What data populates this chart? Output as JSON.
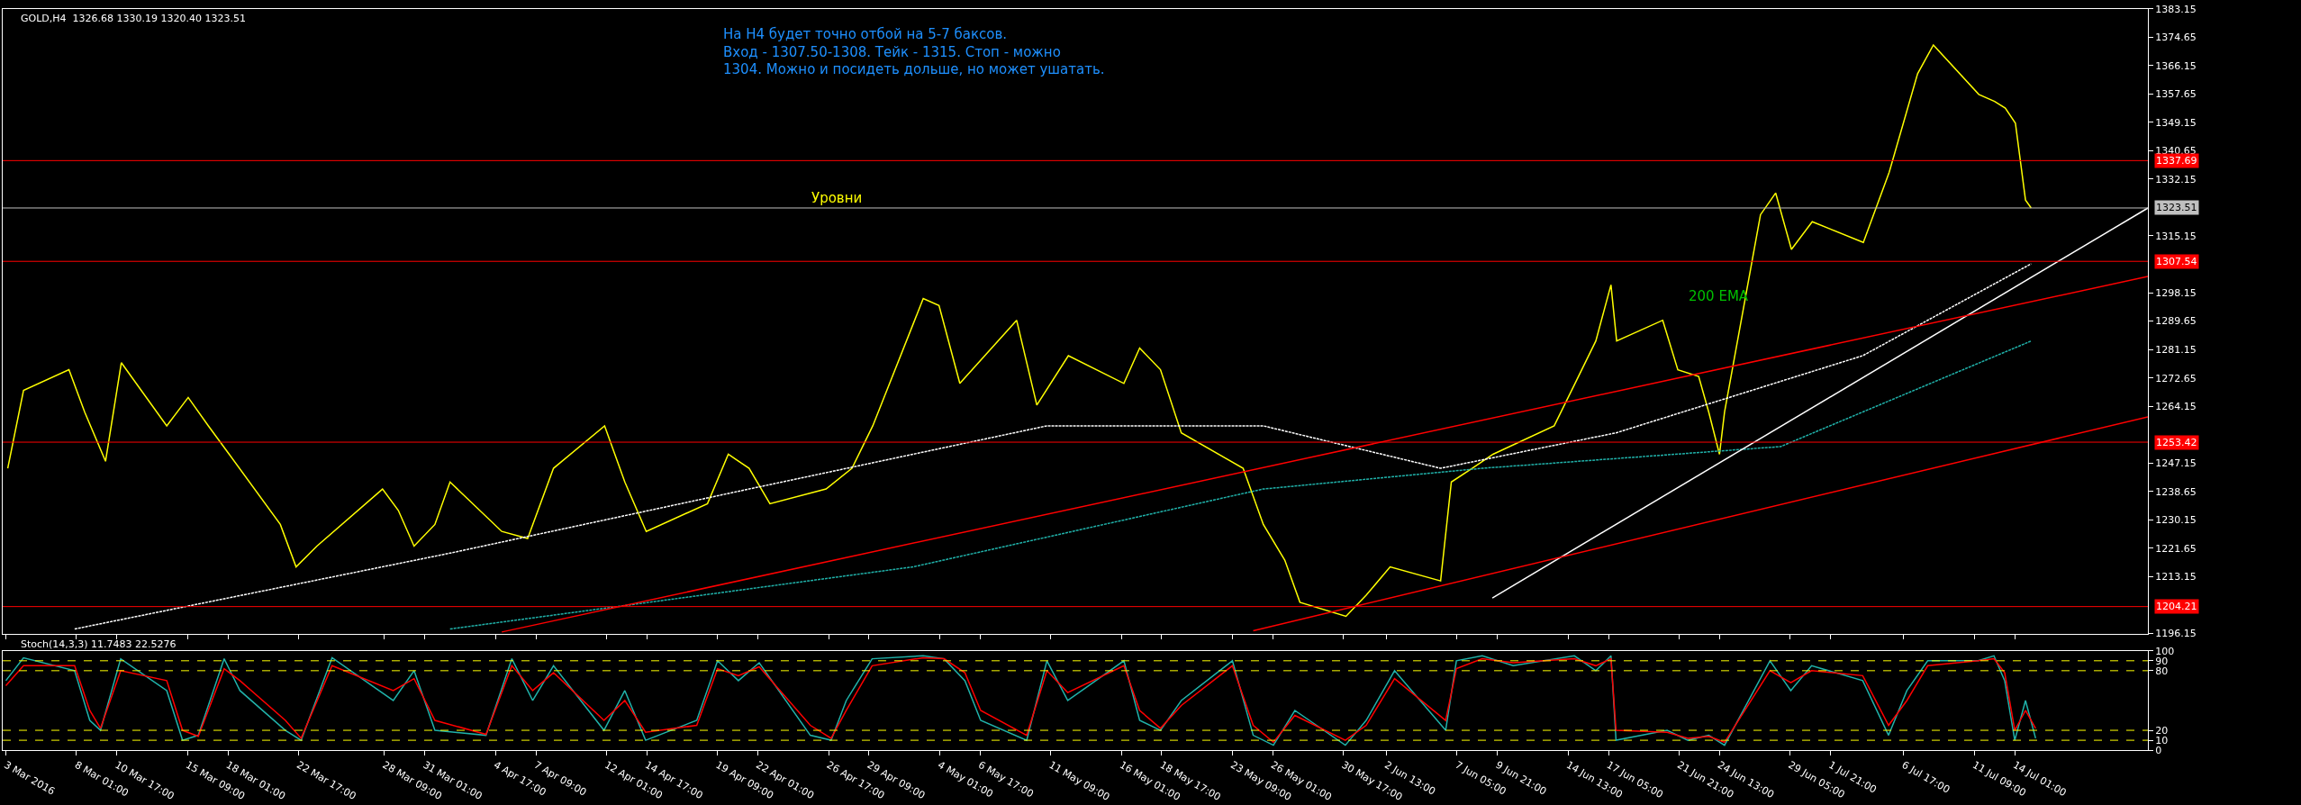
{
  "chart_data": [
    {
      "type": "line",
      "title": "GOLD,H4  1326.68 1330.19 1320.40 1323.51",
      "xlim": [
        "2016-03-03T04:00",
        "2016-07-22T20:00"
      ],
      "xticks": [
        {
          "value": "2016-03-03T09:00",
          "label": null
        },
        {
          "value": "2016-03-08T01:00",
          "label": null
        },
        {
          "value": "2016-03-10T17:00",
          "label": null
        },
        {
          "value": "2016-03-15T09:00",
          "label": null
        },
        {
          "value": "2016-03-18T01:00",
          "label": null
        },
        {
          "value": "2016-03-22T17:00",
          "label": null
        },
        {
          "value": "2016-03-28T09:00",
          "label": null
        },
        {
          "value": "2016-03-31T01:00",
          "label": null
        },
        {
          "value": "2016-04-04T17:00",
          "label": null
        },
        {
          "value": "2016-04-07T09:00",
          "label": null
        },
        {
          "value": "2016-04-12T01:00",
          "label": null
        },
        {
          "value": "2016-04-14T17:00",
          "label": null
        },
        {
          "value": "2016-04-19T09:00",
          "label": null
        },
        {
          "value": "2016-04-22T01:00",
          "label": null
        },
        {
          "value": "2016-04-26T17:00",
          "label": null
        },
        {
          "value": "2016-04-29T09:00",
          "label": null
        },
        {
          "value": "2016-05-04T01:00",
          "label": null
        },
        {
          "value": "2016-05-06T17:00",
          "label": null
        },
        {
          "value": "2016-05-11T09:00",
          "label": null
        },
        {
          "value": "2016-05-16T01:00",
          "label": null
        },
        {
          "value": "2016-05-18T17:00",
          "label": null
        },
        {
          "value": "2016-05-23T09:00",
          "label": null
        },
        {
          "value": "2016-05-26T01:00",
          "label": null
        },
        {
          "value": "2016-05-30T17:00",
          "label": null
        },
        {
          "value": "2016-06-02T13:00",
          "label": null
        },
        {
          "value": "2016-06-07T05:00",
          "label": null
        },
        {
          "value": "2016-06-09T21:00",
          "label": null
        },
        {
          "value": "2016-06-14T13:00",
          "label": null
        },
        {
          "value": "2016-06-17T05:00",
          "label": null
        },
        {
          "value": "2016-06-21T21:00",
          "label": null
        },
        {
          "value": "2016-06-24T13:00",
          "label": null
        },
        {
          "value": "2016-06-29T05:00",
          "label": null
        },
        {
          "value": "2016-07-01T21:00",
          "label": null
        },
        {
          "value": "2016-07-06T17:00",
          "label": null
        },
        {
          "value": "2016-07-11T09:00",
          "label": null
        },
        {
          "value": "2016-07-14T01:00",
          "label": null
        }
      ],
      "ylim": [
        1196.15,
        1383.15
      ],
      "yticks": [
        1196.15,
        1213.15,
        1221.65,
        1230.15,
        1238.65,
        1247.15,
        1264.15,
        1272.65,
        1281.15,
        1289.65,
        1298.15,
        1315.15,
        1332.15,
        1340.65,
        1349.15,
        1357.65,
        1366.15,
        1374.65,
        1383.15
      ],
      "tick_labels": "y",
      "grid": false,
      "series": [
        {
          "color": "#ffff00",
          "x": [
            "2016-03-03T12:00",
            "2016-03-04T13:00",
            "2016-03-07T13:00",
            "2016-03-08T14:00",
            "2016-03-09T23:00",
            "2016-03-11T00:00",
            "2016-03-14T00:00",
            "2016-03-15T10:00",
            "2016-03-16T18:00",
            "2016-03-18T03:00",
            "2016-03-21T12:00",
            "2016-03-22T13:00",
            "2016-03-23T22:00",
            "2016-03-28T06:00",
            "2016-03-29T07:00",
            "2016-03-30T08:00",
            "2016-03-31T17:00",
            "2016-04-01T17:00",
            "2016-04-05T03:00",
            "2016-04-06T20:00",
            "2016-04-08T13:00",
            "2016-04-11T22:00",
            "2016-04-13T06:00",
            "2016-04-14T16:00",
            "2016-04-18T17:00",
            "2016-04-20T02:00",
            "2016-04-21T11:00",
            "2016-04-22T20:00",
            "2016-04-26T13:00",
            "2016-04-28T06:00",
            "2016-04-29T15:00",
            "2016-05-02T23:00",
            "2016-05-04T00:00",
            "2016-05-05T09:00",
            "2016-05-09T03:00",
            "2016-05-10T11:00",
            "2016-05-12T13:00",
            "2016-05-16T05:00",
            "2016-05-17T06:00",
            "2016-05-18T15:00",
            "2016-05-20T00:00",
            "2016-05-24T02:00",
            "2016-05-25T10:00",
            "2016-05-26T20:00",
            "2016-05-27T20:00",
            "2016-05-30T21:00",
            "2016-06-01T05:00",
            "2016-06-02T19:00",
            "2016-06-06T03:00",
            "2016-06-06T20:00",
            "2016-06-08T05:00",
            "2016-06-09T14:00",
            "2016-06-13T15:00",
            "2016-06-15T00:00",
            "2016-06-16T09:00",
            "2016-06-17T09:00",
            "2016-06-17T18:00",
            "2016-06-20T19:00",
            "2016-06-21T19:00",
            "2016-06-23T04:00",
            "2016-06-23T20:00",
            "2016-06-24T13:00",
            "2016-06-24T21:00",
            "2016-06-27T06:00",
            "2016-06-28T06:00",
            "2016-06-29T07:00",
            "2016-06-30T16:00",
            "2016-07-04T01:00",
            "2016-07-05T18:00",
            "2016-07-07T15:00",
            "2016-07-08T16:00",
            "2016-07-11T16:00",
            "2016-07-12T17:00",
            "2016-07-13T10:00",
            "2016-07-14T02:00",
            "2016-07-14T18:00",
            "2016-07-15T03:00"
          ],
          "values": [
            1245.6,
            1268.9,
            1275.1,
            1262.4,
            1247.7,
            1277.2,
            1258.3,
            1266.8,
            1258.3,
            1249.8,
            1228.8,
            1216.1,
            1222.3,
            1239.4,
            1233.0,
            1222.3,
            1228.8,
            1241.5,
            1226.7,
            1224.6,
            1245.6,
            1258.3,
            1241.5,
            1226.7,
            1235.0,
            1249.8,
            1245.6,
            1235.0,
            1239.4,
            1245.6,
            1258.3,
            1296.4,
            1294.3,
            1271.0,
            1289.9,
            1264.5,
            1279.3,
            1271.0,
            1281.6,
            1275.1,
            1256.2,
            1245.6,
            1228.8,
            1218.1,
            1205.5,
            1201.3,
            1207.6,
            1216.1,
            1211.9,
            1241.5,
            1245.6,
            1249.8,
            1258.3,
            1271.0,
            1283.7,
            1300.5,
            1283.7,
            1289.9,
            1275.1,
            1273.1,
            1262.4,
            1249.8,
            1262.4,
            1321.5,
            1328.0,
            1311.1,
            1319.4,
            1313.2,
            1334.2,
            1363.7,
            1372.3,
            1357.5,
            1355.4,
            1353.4,
            1348.9,
            1325.9,
            1323.5
          ]
        },
        {
          "color": "#ffffff",
          "line_style": "dotted",
          "x": [
            "2016-03-07T22:00",
            "2016-04-01T17:00",
            "2016-04-21T11:00",
            "2016-05-11T03:00",
            "2016-05-25T10:00",
            "2016-06-06T03:00",
            "2016-06-17T17:00",
            "2016-07-04T00:00",
            "2016-07-15T03:00"
          ],
          "values": [
            1197.5,
            1220.2,
            1239.4,
            1258.3,
            1258.3,
            1245.6,
            1256.2,
            1279.3,
            1306.8
          ]
        },
        {
          "color": "#20b2aa",
          "line_style": "dotted",
          "x": [
            "2016-04-01T17:00",
            "2016-05-02T07:00",
            "2016-05-25T10:00",
            "2016-06-08T21:00",
            "2016-06-28T14:00",
            "2016-07-15T03:00"
          ],
          "values": [
            1197.5,
            1216.1,
            1239.4,
            1245.6,
            1252.1,
            1283.7
          ]
        },
        {
          "color": "#ffffff",
          "x": [
            "2016-06-09T13:00",
            "2016-07-22T20:00"
          ],
          "values": [
            1206.8,
            1323.5
          ]
        },
        {
          "color": "#ff0000",
          "x": [
            "2016-04-05T03:00",
            "2016-07-22T20:00"
          ],
          "values": [
            1196.6,
            1303.0
          ]
        },
        {
          "color": "#ff0000",
          "x": [
            "2016-05-24T18:00",
            "2016-07-22T20:00"
          ],
          "values": [
            1197.0,
            1261.0
          ]
        }
      ],
      "ref_lines": [
        {
          "axis": "y",
          "value": 1337.69,
          "label": "1337.69",
          "color": "#ff0000"
        },
        {
          "axis": "y",
          "value": 1323.51,
          "label": "1323.51",
          "color": "#c0c0c0"
        },
        {
          "axis": "y",
          "value": 1307.54,
          "label": "1307.54",
          "color": "#ff0000"
        },
        {
          "axis": "y",
          "value": 1253.42,
          "label": "1253.42",
          "color": "#ff0000"
        },
        {
          "axis": "y",
          "value": 1204.21,
          "label": "1204.21",
          "color": "#ff0000"
        }
      ],
      "annotations": [
        "На H4 будет точно отбой на 5-7 баксов.\nВход - 1307.50-1308. Тейк - 1315. Стоп - можно\n1304. Можно и посидеть дольше, но может ушатать.",
        {
          "text": "Уровни",
          "x": "2016-04-27T06:00",
          "y": 1323.51
        },
        "200 EMA"
      ]
    },
    {
      "type": "line",
      "title": "Stoch(14,3,3) 11.7483 22.5276",
      "xlim": [
        "2016-03-03T04:00",
        "2016-07-22T20:00"
      ],
      "xticks": [
        {
          "value": "2016-03-03T09:00",
          "label": "3 Mar 2016"
        },
        {
          "value": "2016-03-08T01:00",
          "label": "8 Mar 01:00"
        },
        {
          "value": "2016-03-10T17:00",
          "label": "10 Mar 17:00"
        },
        {
          "value": "2016-03-15T09:00",
          "label": "15 Mar 09:00"
        },
        {
          "value": "2016-03-18T01:00",
          "label": "18 Mar 01:00"
        },
        {
          "value": "2016-03-22T17:00",
          "label": "22 Mar 17:00"
        },
        {
          "value": "2016-03-28T09:00",
          "label": "28 Mar 09:00"
        },
        {
          "value": "2016-03-31T01:00",
          "label": "31 Mar 01:00"
        },
        {
          "value": "2016-04-04T17:00",
          "label": "4 Apr 17:00"
        },
        {
          "value": "2016-04-07T09:00",
          "label": "7 Apr 09:00"
        },
        {
          "value": "2016-04-12T01:00",
          "label": "12 Apr 01:00"
        },
        {
          "value": "2016-04-14T17:00",
          "label": "14 Apr 17:00"
        },
        {
          "value": "2016-04-19T09:00",
          "label": "19 Apr 09:00"
        },
        {
          "value": "2016-04-22T01:00",
          "label": "22 Apr 01:00"
        },
        {
          "value": "2016-04-26T17:00",
          "label": "26 Apr 17:00"
        },
        {
          "value": "2016-04-29T09:00",
          "label": "29 Apr 09:00"
        },
        {
          "value": "2016-05-04T01:00",
          "label": "4 May 01:00"
        },
        {
          "value": "2016-05-06T17:00",
          "label": "6 May 17:00"
        },
        {
          "value": "2016-05-11T09:00",
          "label": "11 May 09:00"
        },
        {
          "value": "2016-05-16T01:00",
          "label": "16 May 01:00"
        },
        {
          "value": "2016-05-18T17:00",
          "label": "18 May 17:00"
        },
        {
          "value": "2016-05-23T09:00",
          "label": "23 May 09:00"
        },
        {
          "value": "2016-05-26T01:00",
          "label": "26 May 01:00"
        },
        {
          "value": "2016-05-30T17:00",
          "label": "30 May 17:00"
        },
        {
          "value": "2016-06-02T13:00",
          "label": "2 Jun 13:00"
        },
        {
          "value": "2016-06-07T05:00",
          "label": "7 Jun 05:00"
        },
        {
          "value": "2016-06-09T21:00",
          "label": "9 Jun 21:00"
        },
        {
          "value": "2016-06-14T13:00",
          "label": "14 Jun 13:00"
        },
        {
          "value": "2016-06-17T05:00",
          "label": "17 Jun 05:00"
        },
        {
          "value": "2016-06-21T21:00",
          "label": "21 Jun 21:00"
        },
        {
          "value": "2016-06-24T13:00",
          "label": "24 Jun 13:00"
        },
        {
          "value": "2016-06-29T05:00",
          "label": "29 Jun 05:00"
        },
        {
          "value": "2016-07-01T21:00",
          "label": "1 Jul 21:00"
        },
        {
          "value": "2016-07-06T17:00",
          "label": "6 Jul 17:00"
        },
        {
          "value": "2016-07-11T09:00",
          "label": "11 Jul 09:00"
        },
        {
          "value": "2016-07-14T01:00",
          "label": "14 Jul 01:00"
        }
      ],
      "ylim": [
        0,
        100
      ],
      "yticks": [
        0,
        10,
        20,
        80,
        90,
        100
      ],
      "grid": false,
      "series": [
        {
          "color": "#20b2aa",
          "x": [
            "2016-03-03T09:00",
            "2016-03-04T13:00",
            "2016-03-07T22:00",
            "2016-03-08T22:00",
            "2016-03-09T15:00",
            "2016-03-10T23:00",
            "2016-03-14T00:00",
            "2016-03-15T01:00",
            "2016-03-16T02:00",
            "2016-03-17T19:00",
            "2016-03-18T20:00",
            "2016-03-21T20:00",
            "2016-03-22T21:00",
            "2016-03-24T22:00",
            "2016-03-28T23:00",
            "2016-03-30T08:00",
            "2016-03-31T17:00",
            "2016-04-04T02:00",
            "2016-04-05T19:00",
            "2016-04-07T04:00",
            "2016-04-08T13:00",
            "2016-04-11T21:00",
            "2016-04-13T06:00",
            "2016-04-14T15:00",
            "2016-04-18T00:00",
            "2016-04-19T09:00",
            "2016-04-20T18:00",
            "2016-04-22T03:00",
            "2016-04-25T12:00",
            "2016-04-26T21:00",
            "2016-04-27T21:00",
            "2016-04-29T14:00",
            "2016-05-02T23:00",
            "2016-05-04T08:00",
            "2016-05-05T17:00",
            "2016-05-06T18:00",
            "2016-05-09T19:00",
            "2016-05-11T03:00",
            "2016-05-12T12:00",
            "2016-05-16T05:00",
            "2016-05-17T06:00",
            "2016-05-18T15:00",
            "2016-05-20T00:00",
            "2016-05-23T09:00",
            "2016-05-24T18:00",
            "2016-05-26T02:00",
            "2016-05-27T12:00",
            "2016-05-30T20:00",
            "2016-06-01T05:00",
            "2016-06-03T02:00",
            "2016-06-06T11:00",
            "2016-06-07T04:00",
            "2016-06-08T21:00",
            "2016-06-10T22:00",
            "2016-06-14T23:00",
            "2016-06-16T09:00",
            "2016-06-17T09:00",
            "2016-06-17T17:00",
            "2016-06-21T02:00",
            "2016-06-22T11:00",
            "2016-06-23T20:00",
            "2016-06-24T21:00",
            "2016-06-27T21:00",
            "2016-06-29T06:00",
            "2016-06-30T15:00",
            "2016-07-04T00:00",
            "2016-07-05T17:00",
            "2016-07-06T22:00",
            "2016-07-08T07:00",
            "2016-07-11T15:00",
            "2016-07-12T16:00",
            "2016-07-13T09:00",
            "2016-07-14T01:00",
            "2016-07-14T18:00",
            "2016-07-15T10:00"
          ],
          "values": [
            70,
            93,
            80,
            30,
            20,
            92,
            60,
            10,
            15,
            92,
            60,
            20,
            10,
            93,
            50,
            80,
            20,
            15,
            92,
            50,
            85,
            20,
            60,
            10,
            30,
            90,
            70,
            88,
            15,
            10,
            50,
            92,
            95,
            92,
            70,
            30,
            10,
            90,
            50,
            90,
            30,
            20,
            50,
            90,
            15,
            5,
            40,
            5,
            30,
            80,
            20,
            90,
            95,
            85,
            95,
            80,
            95,
            10,
            20,
            10,
            15,
            5,
            90,
            60,
            85,
            70,
            15,
            60,
            90,
            90,
            95,
            70,
            10,
            50,
            12
          ]
        },
        {
          "color": "#ff0000",
          "x": [
            "2016-03-03T09:00",
            "2016-03-04T13:00",
            "2016-03-07T22:00",
            "2016-03-08T22:00",
            "2016-03-09T15:00",
            "2016-03-10T23:00",
            "2016-03-14T00:00",
            "2016-03-15T01:00",
            "2016-03-16T02:00",
            "2016-03-17T19:00",
            "2016-03-18T20:00",
            "2016-03-21T20:00",
            "2016-03-22T21:00",
            "2016-03-24T22:00",
            "2016-03-28T23:00",
            "2016-03-30T08:00",
            "2016-03-31T17:00",
            "2016-04-04T02:00",
            "2016-04-05T19:00",
            "2016-04-07T04:00",
            "2016-04-08T13:00",
            "2016-04-11T21:00",
            "2016-04-13T06:00",
            "2016-04-14T15:00",
            "2016-04-18T00:00",
            "2016-04-19T09:00",
            "2016-04-20T18:00",
            "2016-04-22T03:00",
            "2016-04-25T12:00",
            "2016-04-26T21:00",
            "2016-04-27T21:00",
            "2016-04-29T14:00",
            "2016-05-02T23:00",
            "2016-05-04T08:00",
            "2016-05-05T17:00",
            "2016-05-06T18:00",
            "2016-05-09T19:00",
            "2016-05-11T03:00",
            "2016-05-12T12:00",
            "2016-05-16T05:00",
            "2016-05-17T06:00",
            "2016-05-18T15:00",
            "2016-05-20T00:00",
            "2016-05-23T09:00",
            "2016-05-24T18:00",
            "2016-05-26T02:00",
            "2016-05-27T12:00",
            "2016-05-30T20:00",
            "2016-06-01T05:00",
            "2016-06-03T02:00",
            "2016-06-06T11:00",
            "2016-06-07T04:00",
            "2016-06-08T21:00",
            "2016-06-10T22:00",
            "2016-06-14T23:00",
            "2016-06-16T09:00",
            "2016-06-17T09:00",
            "2016-06-17T17:00",
            "2016-06-21T02:00",
            "2016-06-22T11:00",
            "2016-06-23T20:00",
            "2016-06-24T21:00",
            "2016-06-27T21:00",
            "2016-06-29T06:00",
            "2016-06-30T15:00",
            "2016-07-04T00:00",
            "2016-07-05T17:00",
            "2016-07-06T22:00",
            "2016-07-08T07:00",
            "2016-07-11T15:00",
            "2016-07-12T16:00",
            "2016-07-13T09:00",
            "2016-07-14T01:00",
            "2016-07-14T18:00",
            "2016-07-15T10:00"
          ],
          "values": [
            65,
            85,
            85,
            40,
            22,
            80,
            70,
            20,
            14,
            82,
            70,
            30,
            12,
            85,
            60,
            72,
            30,
            16,
            85,
            60,
            78,
            30,
            50,
            18,
            25,
            82,
            75,
            84,
            25,
            12,
            40,
            85,
            93,
            92,
            78,
            40,
            15,
            80,
            58,
            85,
            40,
            22,
            45,
            85,
            25,
            8,
            35,
            10,
            25,
            72,
            30,
            82,
            92,
            88,
            92,
            85,
            92,
            20,
            18,
            12,
            14,
            8,
            80,
            68,
            80,
            75,
            25,
            50,
            85,
            90,
            92,
            78,
            20,
            40,
            22
          ]
        }
      ],
      "ref_lines": [
        {
          "axis": "y",
          "value": 90,
          "color": "#ffff00",
          "line_style": "dashed"
        },
        {
          "axis": "y",
          "value": 80,
          "color": "#ffff00",
          "line_style": "dashed"
        },
        {
          "axis": "y",
          "value": 20,
          "color": "#ffff00",
          "line_style": "dashed"
        },
        {
          "axis": "y",
          "value": 10,
          "color": "#ffff00",
          "line_style": "dashed"
        }
      ]
    }
  ]
}
